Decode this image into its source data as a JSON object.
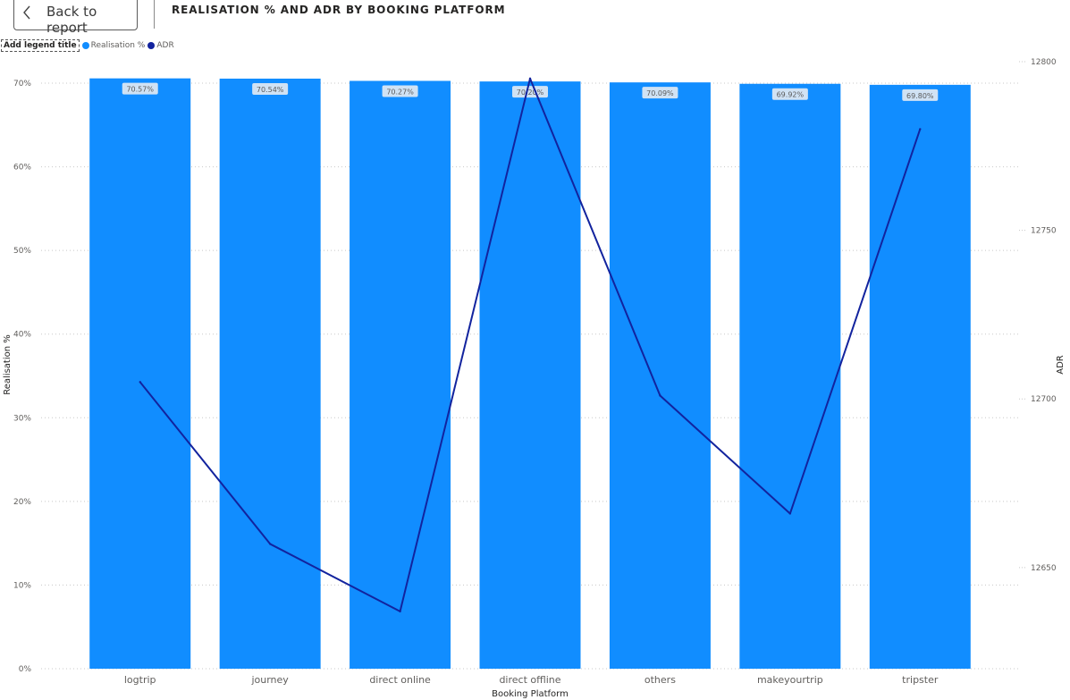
{
  "back_button": {
    "label": "Back to report"
  },
  "chart_data": {
    "type": "bar",
    "title": "REALISATION % AND ADR BY BOOKING PLATFORM",
    "xlabel": "Booking Platform",
    "ylabel": "Realisation %",
    "y2label": "ADR",
    "legend_title": "Add legend title",
    "legend_position": "top-left",
    "grid": true,
    "categories": [
      "logtrip",
      "journey",
      "direct online",
      "direct offline",
      "others",
      "makeyourtrip",
      "tripster"
    ],
    "series": [
      {
        "name": "Realisation %",
        "type": "bar",
        "axis": "left",
        "color": "#118DFF",
        "values": [
          70.57,
          70.54,
          70.27,
          70.2,
          70.09,
          69.92,
          69.8
        ],
        "labels": [
          "70.57%",
          "70.54%",
          "70.27%",
          "70.20%",
          "70.09%",
          "69.92%",
          "69.80%"
        ]
      },
      {
        "name": "ADR",
        "type": "line",
        "axis": "right",
        "color": "#12239E",
        "values": [
          12705,
          12657,
          12637,
          12795,
          12701,
          12666,
          12780
        ]
      }
    ],
    "y_ticks": [
      "0%",
      "10%",
      "20%",
      "30%",
      "40%",
      "50%",
      "60%",
      "70%"
    ],
    "y_tick_values": [
      0,
      10,
      20,
      30,
      40,
      50,
      60,
      70
    ],
    "y2_ticks": [
      "12650",
      "12700",
      "12750",
      "12800"
    ],
    "y2_tick_values": [
      12650,
      12700,
      12750,
      12800
    ],
    "ylim": [
      0,
      70
    ],
    "y2lim": [
      12620,
      12800
    ]
  }
}
